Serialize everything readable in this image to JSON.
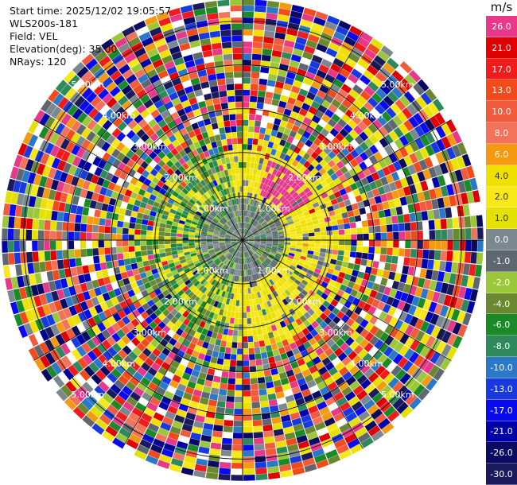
{
  "info": {
    "start_time": "Start time: 2025/12/02 19:05:57",
    "instrument": "WLS200s-181",
    "field": "Field: VEL",
    "elevation": "Elevation(deg): 35.00",
    "nrays": "NRays: 120"
  },
  "colorbar": {
    "unit": "m/s",
    "bins": [
      {
        "label": "26.0",
        "color": "#e8388a",
        "text": "#ffffff"
      },
      {
        "label": "21.0",
        "color": "#e00000",
        "text": "#ffffff"
      },
      {
        "label": "17.0",
        "color": "#f01c1c",
        "text": "#ffffff"
      },
      {
        "label": "13.0",
        "color": "#f24a1a",
        "text": "#ffffff"
      },
      {
        "label": "10.0",
        "color": "#f25a3c",
        "text": "#ffffff"
      },
      {
        "label": "8.0",
        "color": "#f2725a",
        "text": "#ffffff"
      },
      {
        "label": "6.0",
        "color": "#f59a10",
        "text": "#ffffff"
      },
      {
        "label": "4.0",
        "color": "#f0e000",
        "text": "#333333"
      },
      {
        "label": "2.0",
        "color": "#f8e818",
        "text": "#333333"
      },
      {
        "label": "1.0",
        "color": "#e4e000",
        "text": "#333333"
      },
      {
        "label": "0.0",
        "color": "#7c8890",
        "text": "#ffffff"
      },
      {
        "label": "-1.0",
        "color": "#5e6670",
        "text": "#ffffff"
      },
      {
        "label": "-2.0",
        "color": "#9ac838",
        "text": "#ffffff"
      },
      {
        "label": "-4.0",
        "color": "#6a8830",
        "text": "#ffffff"
      },
      {
        "label": "-6.0",
        "color": "#1a8a26",
        "text": "#ffffff"
      },
      {
        "label": "-8.0",
        "color": "#2e8a5c",
        "text": "#ffffff"
      },
      {
        "label": "-10.0",
        "color": "#2a78c8",
        "text": "#ffffff"
      },
      {
        "label": "-13.0",
        "color": "#1838e0",
        "text": "#ffffff"
      },
      {
        "label": "-17.0",
        "color": "#0a0af0",
        "text": "#ffffff"
      },
      {
        "label": "-21.0",
        "color": "#0000a8",
        "text": "#ffffff"
      },
      {
        "label": "-26.0",
        "color": "#0a0a62",
        "text": "#ffffff"
      },
      {
        "label": "-30.0",
        "color": "#1a1a5c",
        "text": "#ffffff"
      }
    ]
  },
  "chart_data": {
    "type": "heatmap",
    "projection": "polar (PPI)",
    "field": "VEL",
    "nrays": 120,
    "range_rings_km": [
      1,
      2,
      3,
      4,
      5
    ],
    "ring_labels": [
      "1.00km",
      "2.00km",
      "3.00km",
      "4.00km",
      "5.00km"
    ],
    "max_range_km": 5.5,
    "value_range": [
      -30.0,
      26.0
    ]
  }
}
